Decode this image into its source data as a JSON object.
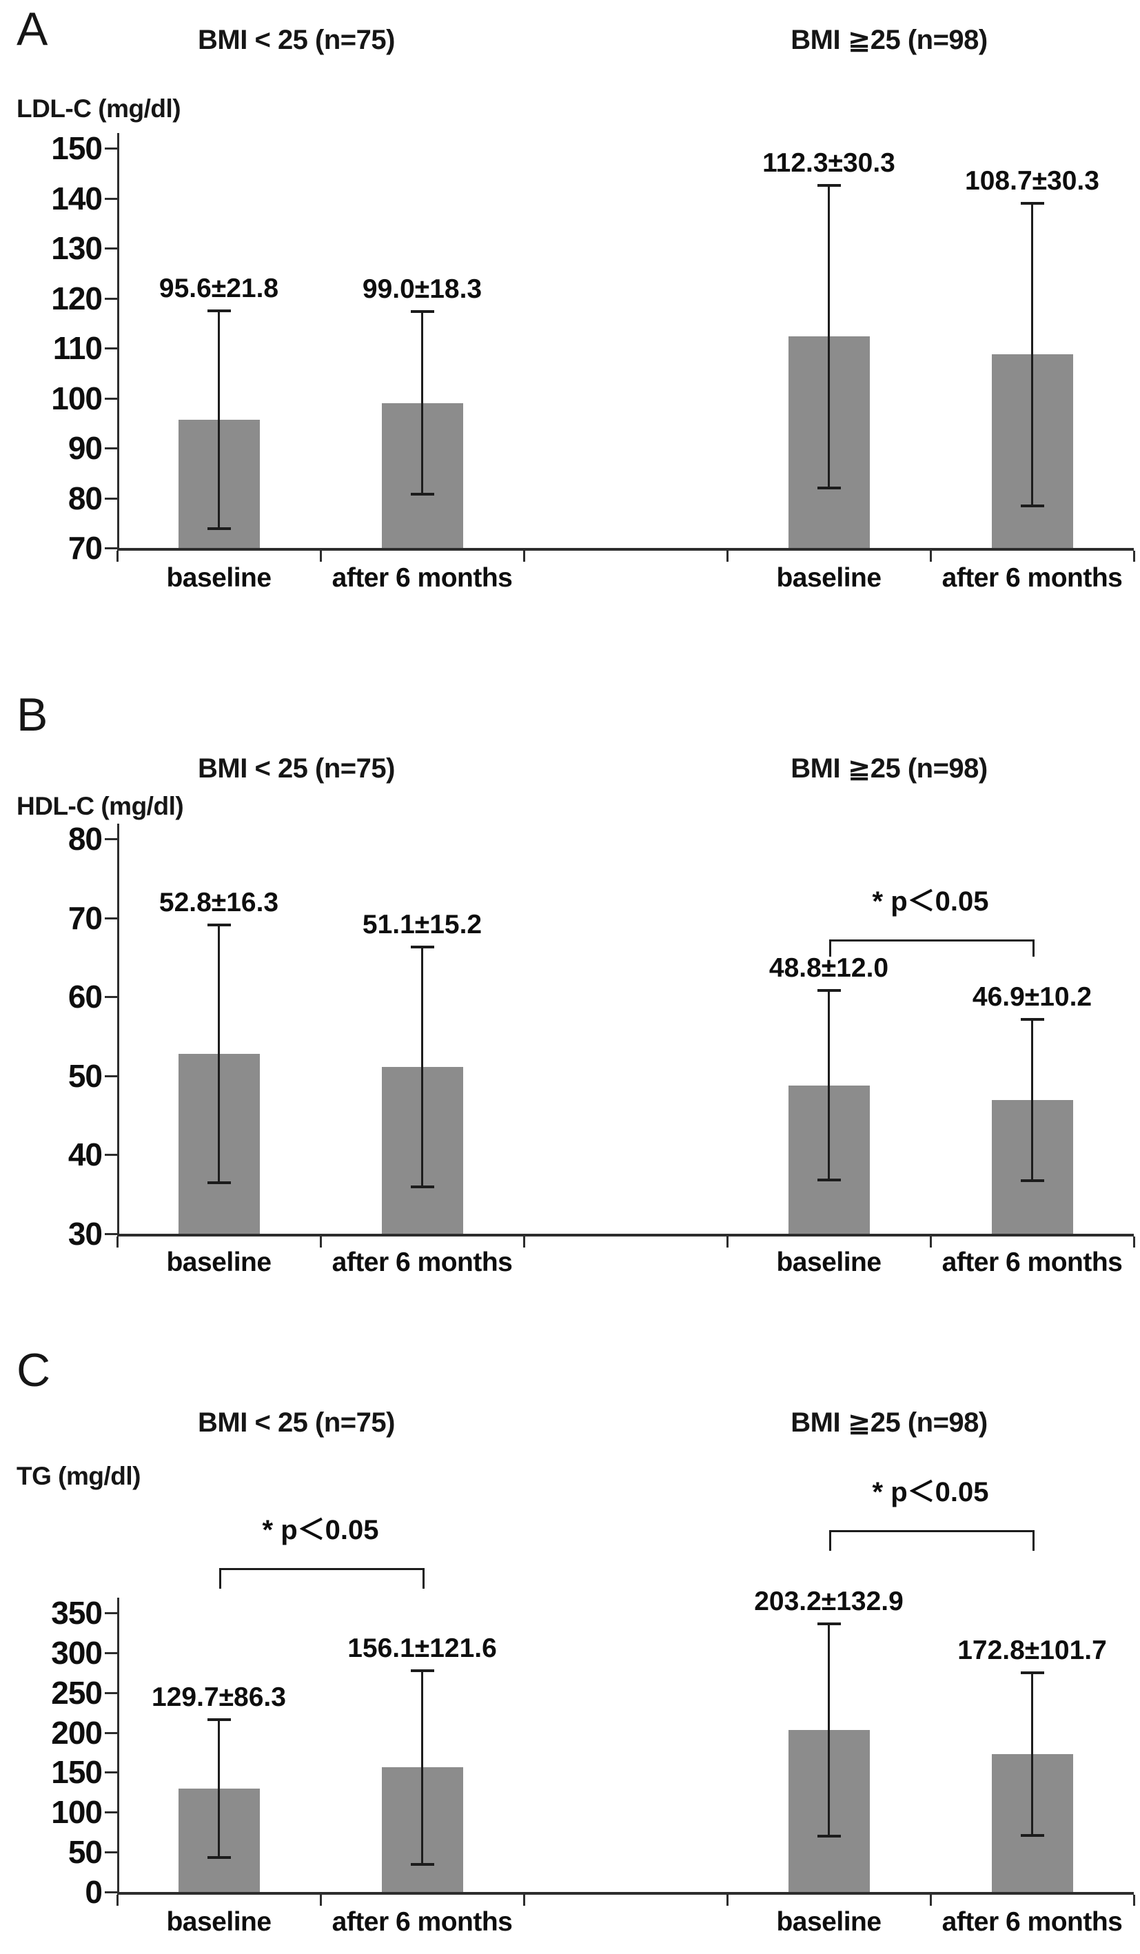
{
  "chart_data": [
    {
      "type": "bar",
      "panel_letter": "A",
      "ylabel": "LDL-C (mg/dl)",
      "ylim": [
        70,
        150
      ],
      "yticks": [
        70,
        80,
        90,
        100,
        110,
        120,
        130,
        140,
        150
      ],
      "categories": [
        "baseline",
        "after 6 months"
      ],
      "groups": [
        {
          "title": "BMI < 25 (n=75)",
          "bars": [
            {
              "category": "baseline",
              "mean": 95.6,
              "sd": 21.8,
              "label": "95.6±21.8"
            },
            {
              "category": "after 6 months",
              "mean": 99.0,
              "sd": 18.3,
              "label": "99.0±18.3"
            }
          ]
        },
        {
          "title": "BMI ≧25 (n=98)",
          "bars": [
            {
              "category": "baseline",
              "mean": 112.3,
              "sd": 30.3,
              "label": "112.3±30.3"
            },
            {
              "category": "after 6 months",
              "mean": 108.7,
              "sd": 30.3,
              "label": "108.7±30.3"
            }
          ]
        }
      ],
      "significance": [],
      "bar_color": "#8c8c8c",
      "grid": false,
      "legend": false
    },
    {
      "type": "bar",
      "panel_letter": "B",
      "ylabel": "HDL-C (mg/dl)",
      "ylim": [
        30,
        80
      ],
      "yticks": [
        30,
        40,
        50,
        60,
        70,
        80
      ],
      "categories": [
        "baseline",
        "after 6 months"
      ],
      "groups": [
        {
          "title": "BMI < 25 (n=75)",
          "bars": [
            {
              "category": "baseline",
              "mean": 52.8,
              "sd": 16.3,
              "label": "52.8±16.3"
            },
            {
              "category": "after 6 months",
              "mean": 51.1,
              "sd": 15.2,
              "label": "51.1±15.2"
            }
          ]
        },
        {
          "title": "BMI ≧25 (n=98)",
          "bars": [
            {
              "category": "baseline",
              "mean": 48.8,
              "sd": 12.0,
              "label": "48.8±12.0"
            },
            {
              "category": "after 6 months",
              "mean": 46.9,
              "sd": 10.2,
              "label": "46.9±10.2"
            }
          ]
        }
      ],
      "significance": [
        {
          "group": 1,
          "text": "* p＜0.05"
        }
      ],
      "bar_color": "#8c8c8c",
      "grid": false,
      "legend": false
    },
    {
      "type": "bar",
      "panel_letter": "C",
      "ylabel": "TG (mg/dl)",
      "ylim": [
        0,
        350
      ],
      "yticks": [
        0,
        50,
        100,
        150,
        200,
        250,
        300,
        350
      ],
      "categories": [
        "baseline",
        "after 6 months"
      ],
      "groups": [
        {
          "title": "BMI < 25 (n=75)",
          "bars": [
            {
              "category": "baseline",
              "mean": 129.7,
              "sd": 86.3,
              "label": "129.7±86.3"
            },
            {
              "category": "after 6 months",
              "mean": 156.1,
              "sd": 121.6,
              "label": "156.1±121.6"
            }
          ]
        },
        {
          "title": "BMI ≧25 (n=98)",
          "bars": [
            {
              "category": "baseline",
              "mean": 203.2,
              "sd": 132.9,
              "label": "203.2±132.9"
            },
            {
              "category": "after 6 months",
              "mean": 172.8,
              "sd": 101.7,
              "label": "172.8±101.7"
            }
          ]
        }
      ],
      "significance": [
        {
          "group": 0,
          "text": "* p＜0.05"
        },
        {
          "group": 1,
          "text": "* p＜0.05"
        }
      ],
      "bar_color": "#8c8c8c",
      "grid": false,
      "legend": false
    }
  ]
}
